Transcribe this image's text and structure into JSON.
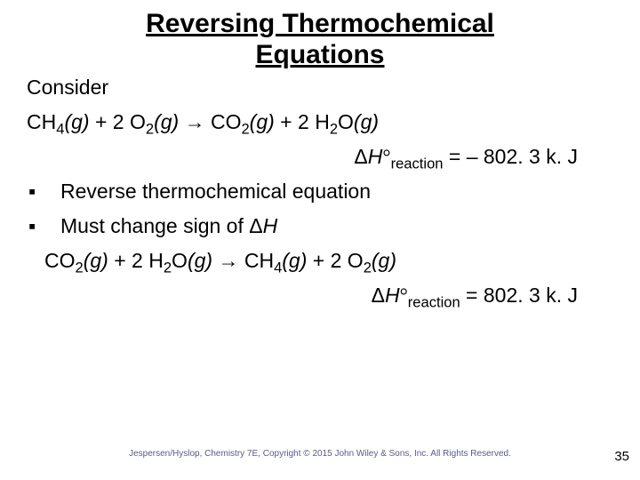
{
  "title_line1": "Reversing Thermochemical",
  "title_line2": "Equations",
  "consider": "Consider",
  "equation1": {
    "ch4": "CH",
    "ch4_sub": "4",
    "g1": "(g)",
    "plus1": " + 2 O",
    "o2_sub": "2",
    "g2": "(g)",
    "arrow": " → CO",
    "co2_sub": "2",
    "g3": "(g)",
    "plus2": " + 2 H",
    "h2_sub": "2",
    "o": "O",
    "g4": "(g)"
  },
  "dh1": {
    "delta": "Δ",
    "H": "H",
    "deg": "°",
    "sub": "reaction",
    "eq": " = – 802. 3 k. J"
  },
  "bullets": [
    "Reverse thermochemical equation",
    "Must change sign of ΔH"
  ],
  "bullet_marker": "▪",
  "equation2": {
    "co2": "CO",
    "co2_sub": "2",
    "g1": "(g)",
    "plus1": "  +  2 H",
    "h2_sub": "2",
    "o1": "O",
    "g2": "(g)",
    "arrow": "  →  CH",
    "ch4_sub": "4",
    "g3": "(g)",
    "plus2": "  +  2 O",
    "o2_sub": "2",
    "g4": "(g)"
  },
  "dh2": {
    "delta": "Δ",
    "H": "H",
    "deg": "°",
    "sub": "reaction",
    "eq": " = 802. 3 k. J"
  },
  "footer": "Jespersen/Hyslop, Chemistry 7E, Copyright © 2015 John Wiley & Sons, Inc. All Rights Reserved.",
  "page": "35",
  "colors": {
    "text": "#000000",
    "footer": "#5a5a8a",
    "background": "#ffffff"
  }
}
